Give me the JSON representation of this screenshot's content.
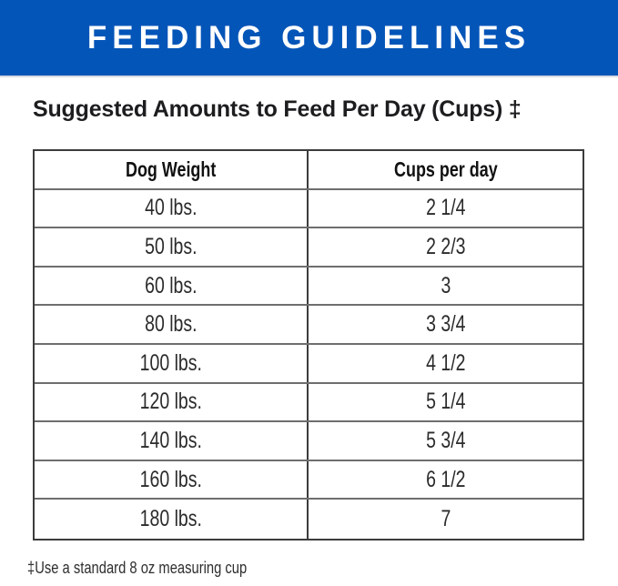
{
  "banner": {
    "title": "FEEDING GUIDELINES"
  },
  "heading": {
    "text": "Suggested Amounts to Feed Per Day (Cups) ‡"
  },
  "table": {
    "columns": [
      "Dog Weight",
      "Cups per day"
    ],
    "rows": [
      {
        "weight": "40 lbs.",
        "cups": "2 1/4"
      },
      {
        "weight": "50 lbs.",
        "cups": "2 2/3"
      },
      {
        "weight": "60 lbs.",
        "cups": "3"
      },
      {
        "weight": "80 lbs.",
        "cups": "3 3/4"
      },
      {
        "weight": "100 lbs.",
        "cups": "4 1/2"
      },
      {
        "weight": "120 lbs.",
        "cups": "5 1/4"
      },
      {
        "weight": "140 lbs.",
        "cups": "5 3/4"
      },
      {
        "weight": "160 lbs.",
        "cups": "6 1/2"
      },
      {
        "weight": "180 lbs.",
        "cups": "7"
      }
    ]
  },
  "footnote": {
    "text": "‡Use a standard 8 oz measuring cup"
  },
  "colors": {
    "banner_blue": "#0455b8",
    "banner_text": "#ffffff",
    "heading_text": "#1d1d1f",
    "table_text": "#2b2b2b",
    "border_dark": "#3c3c3c",
    "border_light": "#6e6e6e"
  },
  "chart_data": {
    "type": "table",
    "title": "Suggested Amounts to Feed Per Day (Cups) ‡",
    "columns": [
      "Dog Weight",
      "Cups per day"
    ],
    "rows": [
      [
        "40 lbs.",
        "2 1/4"
      ],
      [
        "50 lbs.",
        "2 2/3"
      ],
      [
        "60 lbs.",
        "3"
      ],
      [
        "80 lbs.",
        "3 3/4"
      ],
      [
        "100 lbs.",
        "4 1/2"
      ],
      [
        "120 lbs.",
        "5 1/4"
      ],
      [
        "140 lbs.",
        "5 3/4"
      ],
      [
        "160 lbs.",
        "6 1/2"
      ],
      [
        "180 lbs.",
        "7"
      ]
    ],
    "weights_lbs": [
      40,
      50,
      60,
      80,
      100,
      120,
      140,
      160,
      180
    ],
    "cups_per_day_numeric": [
      2.25,
      2.67,
      3,
      3.75,
      4.5,
      5.25,
      5.75,
      6.5,
      7
    ],
    "footnote": "‡Use a standard 8 oz measuring cup"
  }
}
